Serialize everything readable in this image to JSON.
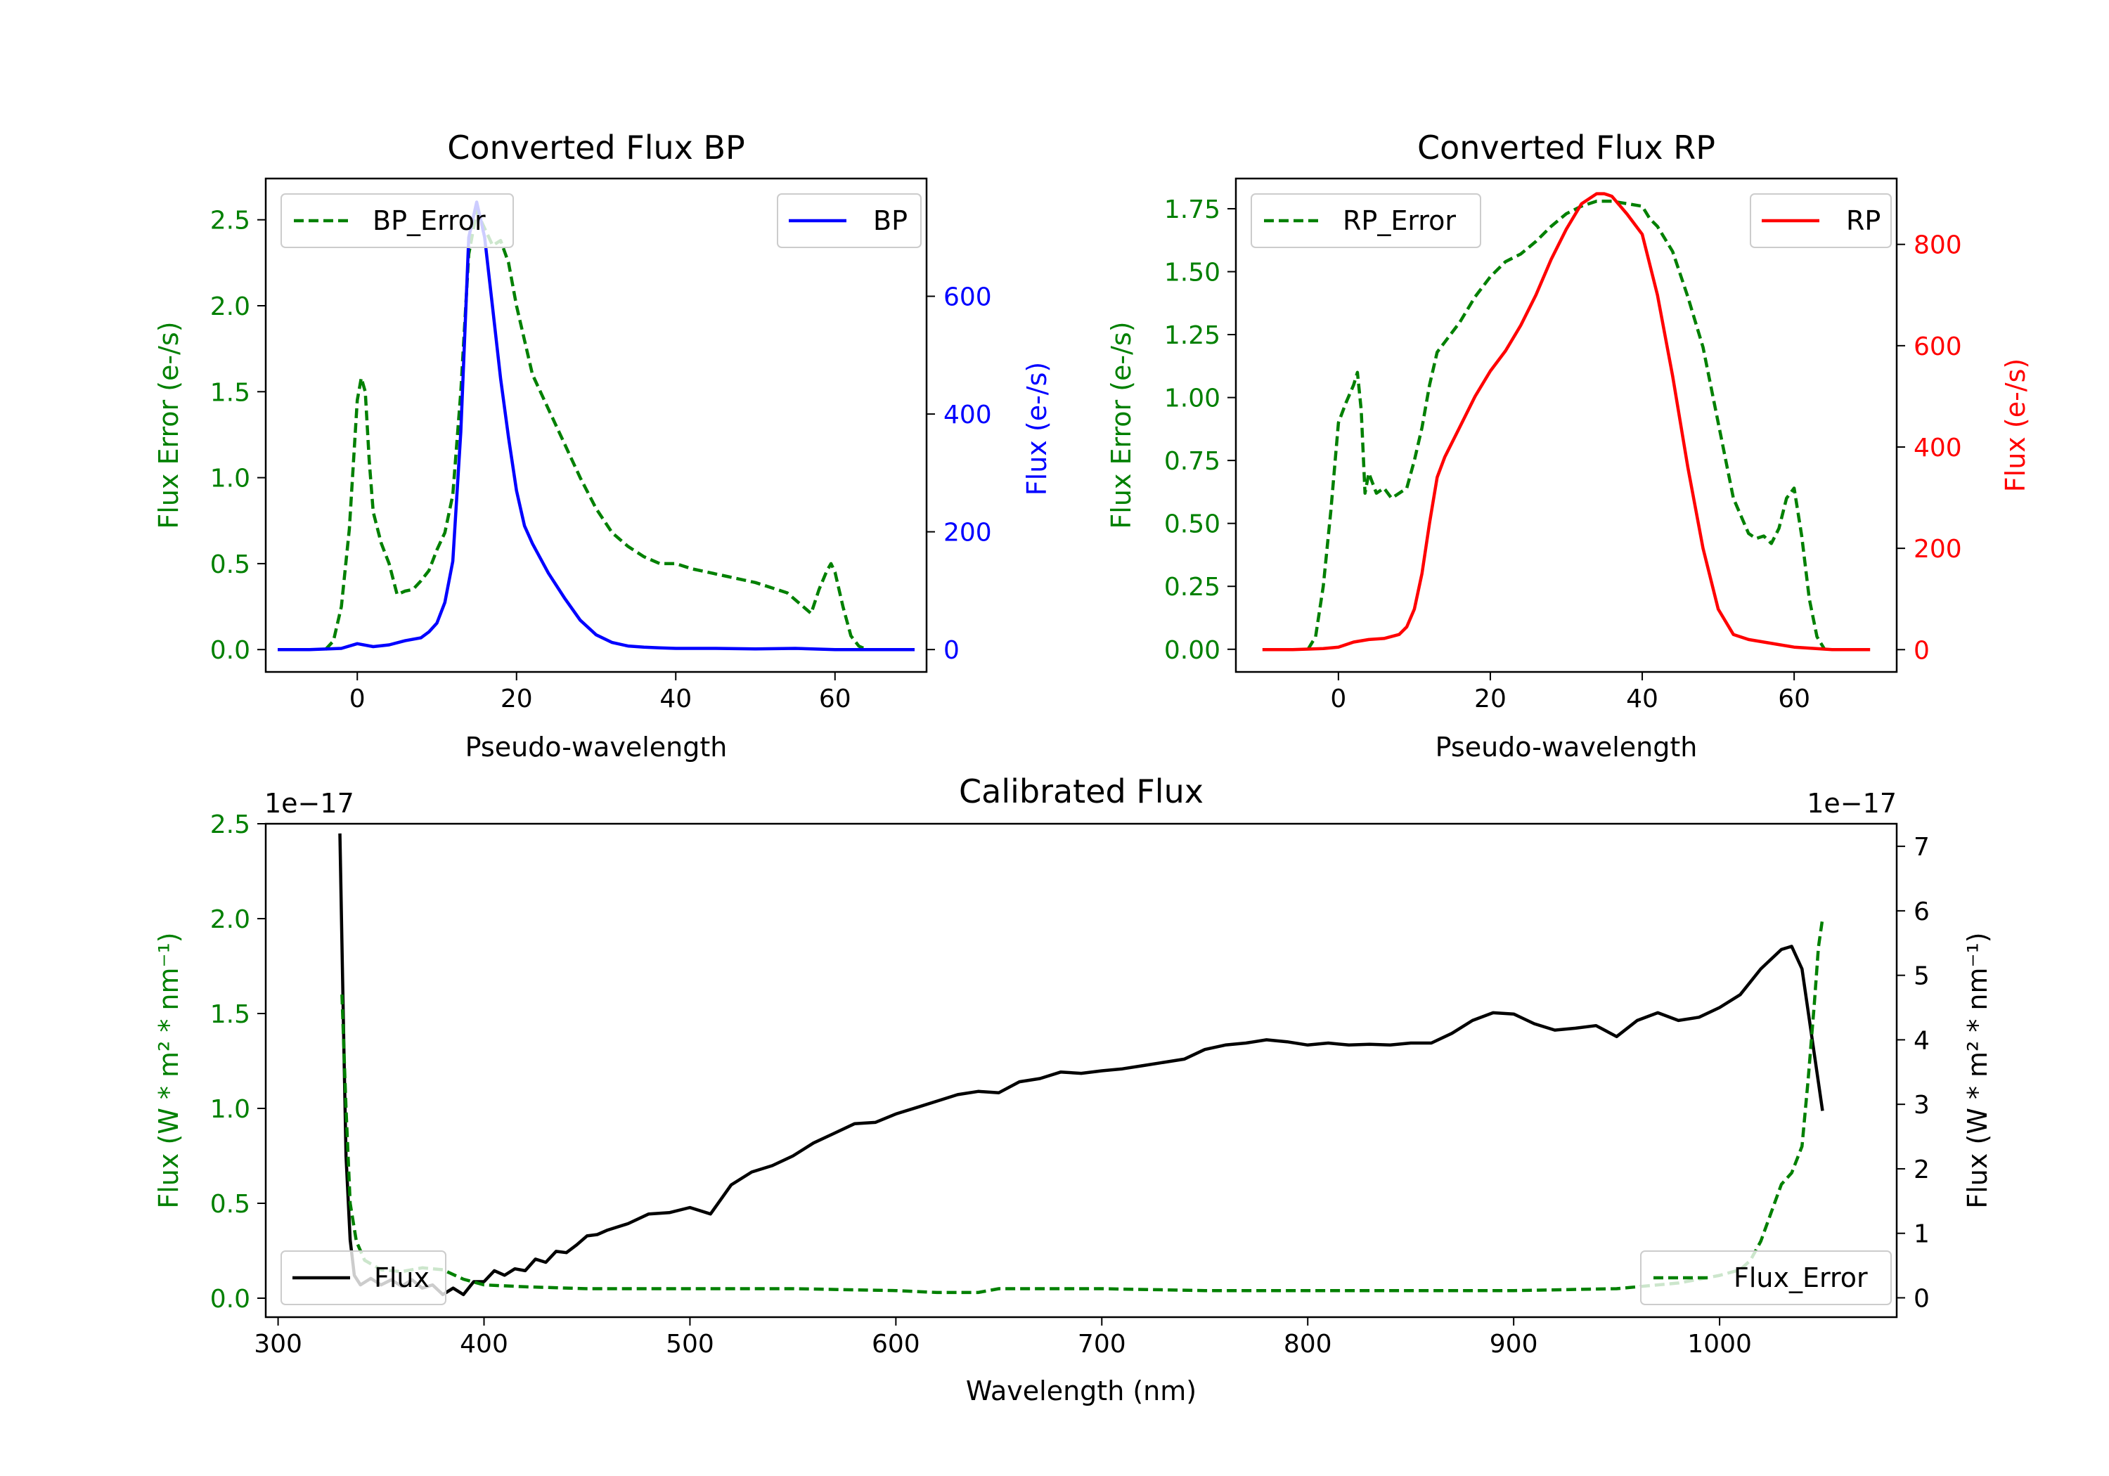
{
  "colors": {
    "error": "#008000",
    "bp": "#0000ff",
    "rp": "#ff0000",
    "flux": "#000000"
  },
  "chart_data": [
    {
      "id": "bp",
      "type": "line",
      "title": "Converted Flux BP",
      "xlabel": "Pseudo-wavelength",
      "ylabel_left": "Flux Error (e-/s)",
      "ylabel_right": "Flux (e-/s)",
      "xlim": [
        -11.5,
        71.5
      ],
      "ylim_left": [
        -0.13,
        2.74
      ],
      "ylim_right": [
        -38,
        800
      ],
      "xticks": [
        0,
        20,
        40,
        60
      ],
      "xtick_labels": [
        "0",
        "20",
        "40",
        "60"
      ],
      "yticks_left": [
        0.0,
        0.5,
        1.0,
        1.5,
        2.0,
        2.5
      ],
      "ytick_labels_left": [
        "0.0",
        "0.5",
        "1.0",
        "1.5",
        "2.0",
        "2.5"
      ],
      "yticks_right": [
        0,
        200,
        400,
        600
      ],
      "ytick_labels_right": [
        "0",
        "200",
        "400",
        "600"
      ],
      "legend_left": "BP_Error",
      "legend_right": "BP",
      "series": [
        {
          "name": "BP_Error",
          "axis": "left",
          "style": "dashed",
          "color_key": "error",
          "x": [
            -4,
            -3,
            -2,
            -1,
            0,
            0.5,
            1,
            1.5,
            2,
            3,
            4,
            5,
            6,
            7,
            8,
            9,
            10,
            11,
            12,
            13,
            14,
            15,
            16,
            17,
            18,
            19,
            20,
            22,
            24,
            26,
            28,
            30,
            32,
            34,
            36,
            38,
            40,
            42,
            44,
            46,
            48,
            50,
            52,
            54,
            56,
            57,
            58,
            59,
            59.5,
            60,
            61,
            62,
            63,
            64
          ],
          "values": [
            0,
            0.05,
            0.25,
            0.7,
            1.45,
            1.58,
            1.5,
            1.1,
            0.8,
            0.62,
            0.5,
            0.32,
            0.34,
            0.35,
            0.4,
            0.46,
            0.58,
            0.68,
            0.9,
            1.5,
            2.3,
            2.55,
            2.45,
            2.35,
            2.38,
            2.25,
            2.0,
            1.6,
            1.4,
            1.2,
            1.0,
            0.82,
            0.68,
            0.6,
            0.54,
            0.5,
            0.5,
            0.47,
            0.45,
            0.43,
            0.41,
            0.39,
            0.36,
            0.33,
            0.25,
            0.21,
            0.35,
            0.46,
            0.5,
            0.45,
            0.25,
            0.08,
            0.02,
            0
          ]
        },
        {
          "name": "BP",
          "axis": "right",
          "style": "solid",
          "color_key": "bp",
          "x": [
            -10,
            -6,
            -2,
            0,
            2,
            4,
            6,
            8,
            9,
            10,
            11,
            12,
            13,
            14,
            15,
            16,
            17,
            18,
            19,
            20,
            21,
            22,
            24,
            26,
            28,
            30,
            32,
            34,
            36,
            38,
            40,
            45,
            50,
            55,
            60,
            65,
            70
          ],
          "values": [
            0,
            0,
            2,
            10,
            5,
            8,
            15,
            20,
            30,
            45,
            80,
            150,
            370,
            700,
            760,
            700,
            580,
            460,
            360,
            270,
            210,
            180,
            130,
            88,
            50,
            25,
            12,
            6,
            4,
            3,
            2,
            2,
            1,
            2,
            0,
            0,
            0
          ]
        }
      ]
    },
    {
      "id": "rp",
      "type": "line",
      "title": "Converted Flux RP",
      "xlabel": "Pseudo-wavelength",
      "ylabel_left": "Flux Error (e-/s)",
      "ylabel_right": "Flux (e-/s)",
      "xlim": [
        -13.5,
        73.5
      ],
      "ylim_left": [
        -0.09,
        1.87
      ],
      "ylim_right": [
        -44,
        930
      ],
      "xticks": [
        0,
        20,
        40,
        60
      ],
      "xtick_labels": [
        "0",
        "20",
        "40",
        "60"
      ],
      "yticks_left": [
        0.0,
        0.25,
        0.5,
        0.75,
        1.0,
        1.25,
        1.5,
        1.75
      ],
      "ytick_labels_left": [
        "0.00",
        "0.25",
        "0.50",
        "0.75",
        "1.00",
        "1.25",
        "1.50",
        "1.75"
      ],
      "yticks_right": [
        0,
        200,
        400,
        600,
        800
      ],
      "ytick_labels_right": [
        "0",
        "200",
        "400",
        "600",
        "800"
      ],
      "legend_left": "RP_Error",
      "legend_right": "RP",
      "series": [
        {
          "name": "RP_Error",
          "axis": "left",
          "style": "dashed",
          "color_key": "error",
          "x": [
            -4,
            -3,
            -2,
            -1,
            0,
            1,
            2,
            2.5,
            3,
            3.5,
            4,
            5,
            6,
            7,
            8,
            9,
            10,
            11,
            12,
            13,
            14,
            16,
            18,
            20,
            22,
            24,
            26,
            28,
            30,
            32,
            34,
            36,
            38,
            40,
            41,
            42,
            44,
            46,
            48,
            50,
            52,
            54,
            55,
            56,
            57,
            58,
            59,
            60,
            61,
            62,
            63,
            64
          ],
          "values": [
            0,
            0.05,
            0.25,
            0.55,
            0.9,
            0.98,
            1.05,
            1.1,
            0.95,
            0.62,
            0.7,
            0.62,
            0.64,
            0.6,
            0.62,
            0.64,
            0.75,
            0.88,
            1.05,
            1.18,
            1.22,
            1.3,
            1.4,
            1.48,
            1.54,
            1.57,
            1.62,
            1.68,
            1.73,
            1.76,
            1.78,
            1.78,
            1.77,
            1.76,
            1.71,
            1.68,
            1.58,
            1.4,
            1.2,
            0.9,
            0.6,
            0.46,
            0.44,
            0.45,
            0.42,
            0.48,
            0.6,
            0.64,
            0.45,
            0.2,
            0.05,
            0
          ]
        },
        {
          "name": "RP",
          "axis": "right",
          "style": "solid",
          "color_key": "rp",
          "x": [
            -10,
            -6,
            -2,
            0,
            2,
            4,
            6,
            8,
            9,
            10,
            11,
            12,
            13,
            14,
            16,
            18,
            20,
            22,
            24,
            26,
            28,
            30,
            32,
            34,
            35,
            36,
            38,
            40,
            42,
            44,
            46,
            48,
            50,
            52,
            54,
            56,
            58,
            60,
            65,
            70
          ],
          "values": [
            0,
            0,
            2,
            5,
            15,
            20,
            22,
            30,
            45,
            80,
            150,
            250,
            340,
            380,
            440,
            500,
            550,
            590,
            640,
            700,
            770,
            830,
            880,
            900,
            900,
            895,
            860,
            820,
            700,
            540,
            360,
            200,
            80,
            30,
            20,
            15,
            10,
            5,
            0,
            0
          ]
        }
      ]
    },
    {
      "id": "calibrated",
      "type": "line",
      "title": "Calibrated Flux",
      "xlabel": "Wavelength (nm)",
      "ylabel_left": "Flux (W * m² * nm⁻¹)",
      "ylabel_right": "Flux (W * m² * nm⁻¹)",
      "offset_left": "1e−17",
      "offset_right": "1e−17",
      "xlim": [
        294,
        1086
      ],
      "ylim_left": [
        -0.1,
        2.5
      ],
      "ylim_right": [
        -0.3,
        7.35
      ],
      "xticks": [
        300,
        400,
        500,
        600,
        700,
        800,
        900,
        1000
      ],
      "xtick_labels": [
        "300",
        "400",
        "500",
        "600",
        "700",
        "800",
        "900",
        "1000"
      ],
      "yticks_left": [
        0.0,
        0.5,
        1.0,
        1.5,
        2.0,
        2.5
      ],
      "ytick_labels_left": [
        "0.0",
        "0.5",
        "1.0",
        "1.5",
        "2.0",
        "2.5"
      ],
      "yticks_right": [
        0,
        1,
        2,
        3,
        4,
        5,
        6,
        7
      ],
      "ytick_labels_right": [
        "0",
        "1",
        "2",
        "3",
        "4",
        "5",
        "6",
        "7"
      ],
      "legend_left": "Flux",
      "legend_right": "Flux_Error",
      "series": [
        {
          "name": "Flux",
          "axis": "right",
          "style": "solid",
          "color_key": "flux",
          "x": [
            330,
            331,
            332,
            333,
            335,
            337,
            340,
            345,
            350,
            355,
            360,
            365,
            370,
            375,
            380,
            385,
            390,
            395,
            400,
            405,
            410,
            415,
            420,
            425,
            430,
            435,
            440,
            445,
            450,
            455,
            460,
            470,
            480,
            490,
            500,
            510,
            520,
            530,
            540,
            550,
            560,
            570,
            580,
            590,
            600,
            610,
            620,
            630,
            640,
            650,
            660,
            670,
            680,
            690,
            700,
            710,
            720,
            730,
            740,
            750,
            760,
            770,
            780,
            790,
            800,
            810,
            820,
            830,
            840,
            850,
            860,
            870,
            880,
            890,
            900,
            910,
            920,
            930,
            940,
            950,
            960,
            970,
            980,
            990,
            1000,
            1010,
            1020,
            1030,
            1035,
            1040,
            1045,
            1050
          ],
          "values": [
            7.2,
            5.5,
            3.8,
            2.2,
            0.9,
            0.35,
            0.2,
            0.3,
            0.2,
            0.28,
            0.18,
            0.28,
            0.15,
            0.2,
            0.05,
            0.15,
            0.05,
            0.25,
            0.25,
            0.42,
            0.35,
            0.45,
            0.42,
            0.6,
            0.55,
            0.72,
            0.7,
            0.82,
            0.96,
            0.98,
            1.05,
            1.15,
            1.3,
            1.32,
            1.4,
            1.3,
            1.75,
            1.95,
            2.05,
            2.2,
            2.4,
            2.55,
            2.7,
            2.72,
            2.85,
            2.95,
            3.05,
            3.15,
            3.2,
            3.18,
            3.35,
            3.4,
            3.5,
            3.48,
            3.52,
            3.55,
            3.6,
            3.65,
            3.7,
            3.85,
            3.92,
            3.95,
            4.0,
            3.97,
            3.92,
            3.95,
            3.92,
            3.93,
            3.92,
            3.95,
            3.95,
            4.1,
            4.3,
            4.42,
            4.4,
            4.25,
            4.15,
            4.18,
            4.22,
            4.05,
            4.3,
            4.42,
            4.3,
            4.35,
            4.5,
            4.7,
            5.1,
            5.4,
            5.45,
            5.1,
            4.0,
            2.9
          ]
        },
        {
          "name": "Flux_Error",
          "axis": "left",
          "style": "dashed",
          "color_key": "error",
          "x": [
            331,
            333,
            335,
            338,
            342,
            350,
            360,
            370,
            380,
            390,
            400,
            420,
            450,
            500,
            550,
            600,
            620,
            630,
            640,
            650,
            700,
            750,
            800,
            850,
            900,
            950,
            980,
            1000,
            1010,
            1015,
            1020,
            1025,
            1030,
            1035,
            1040,
            1043,
            1046,
            1048,
            1050
          ],
          "values": [
            1.6,
            1.0,
            0.5,
            0.3,
            0.2,
            0.15,
            0.14,
            0.16,
            0.15,
            0.1,
            0.07,
            0.06,
            0.05,
            0.05,
            0.05,
            0.04,
            0.03,
            0.03,
            0.03,
            0.05,
            0.05,
            0.04,
            0.04,
            0.04,
            0.04,
            0.05,
            0.08,
            0.12,
            0.15,
            0.2,
            0.3,
            0.45,
            0.6,
            0.66,
            0.8,
            1.15,
            1.55,
            1.85,
            2.0
          ]
        }
      ]
    }
  ]
}
